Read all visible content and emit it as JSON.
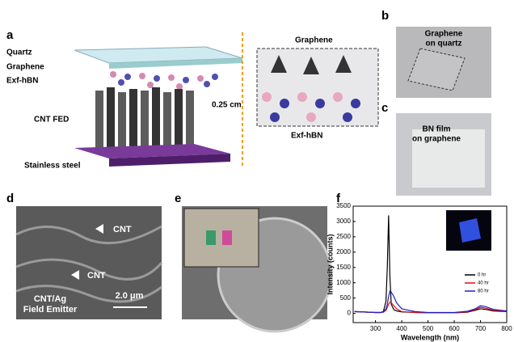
{
  "panels": {
    "a": {
      "label": "a",
      "quartz": "Quartz",
      "graphene": "Graphene",
      "hbn": "Exf-hBN",
      "cnt": "CNT FED",
      "steel": "Stainless steel",
      "gap": "0.25 cm",
      "inset_top": "Graphene",
      "inset_bottom": "Exf-hBN"
    },
    "b": {
      "label": "b",
      "text": [
        "Graphene",
        "on quartz"
      ]
    },
    "c": {
      "label": "c",
      "text": [
        "BN film",
        "on graphene"
      ]
    },
    "d": {
      "label": "d",
      "cnt_1": "CNT",
      "cnt_2": "CNT",
      "caption": [
        "CNT/Ag",
        "Field Emitter"
      ],
      "scale": "2.0 μm"
    },
    "e": {
      "label": "e"
    },
    "f": {
      "label": "f"
    }
  },
  "chart_data": {
    "type": "line",
    "xlabel": "Wavelength (nm)",
    "ylabel": "Intensity (counts)",
    "x": [
      220,
      300,
      320,
      330,
      340,
      345,
      350,
      355,
      360,
      370,
      380,
      400,
      450,
      500,
      600,
      650,
      680,
      700,
      720,
      750,
      800
    ],
    "series": [
      {
        "name": "0 hr",
        "color": "#000000",
        "values": [
          60,
          30,
          30,
          60,
          400,
          1500,
          3200,
          1200,
          300,
          120,
          80,
          50,
          30,
          20,
          20,
          40,
          100,
          150,
          130,
          80,
          60
        ]
      },
      {
        "name": "40 hr",
        "color": "#e01010",
        "values": [
          60,
          30,
          30,
          40,
          100,
          200,
          300,
          370,
          350,
          250,
          150,
          60,
          30,
          20,
          20,
          50,
          120,
          200,
          170,
          100,
          70
        ]
      },
      {
        "name": "80 hr",
        "color": "#2020c0",
        "values": [
          60,
          30,
          30,
          50,
          150,
          300,
          550,
          730,
          700,
          550,
          350,
          150,
          60,
          30,
          30,
          70,
          150,
          250,
          220,
          130,
          80
        ]
      }
    ],
    "xlim": [
      215,
      800
    ],
    "ylim": [
      -300,
      3500
    ],
    "xticks": [
      300,
      400,
      500,
      600,
      700,
      800
    ],
    "yticks": [
      0,
      500,
      1000,
      1500,
      2000,
      2500,
      3000,
      3500
    ]
  }
}
